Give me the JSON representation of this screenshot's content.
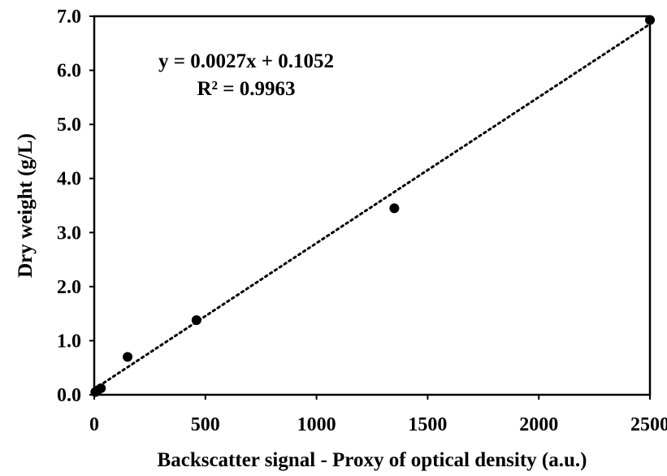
{
  "chart_data": {
    "type": "scatter",
    "xlabel": "Backscatter signal - Proxy of optical density (a.u.)",
    "ylabel": "Dry weight (g/L)",
    "xlim": [
      0,
      2500
    ],
    "ylim": [
      0,
      7
    ],
    "xticks": [
      "0",
      "500",
      "1000",
      "1500",
      "2000",
      "2500"
    ],
    "yticks": [
      "0.0",
      "1.0",
      "2.0",
      "3.0",
      "4.0",
      "5.0",
      "6.0",
      "7.0"
    ],
    "grid": false,
    "legend": "none",
    "series": [
      {
        "marker_color": "#000000",
        "points": [
          {
            "x": 5,
            "y": 0.05
          },
          {
            "x": 15,
            "y": 0.08
          },
          {
            "x": 30,
            "y": 0.12
          },
          {
            "x": 150,
            "y": 0.7
          },
          {
            "x": 460,
            "y": 1.38
          },
          {
            "x": 1350,
            "y": 3.45
          },
          {
            "x": 2500,
            "y": 6.93
          }
        ]
      }
    ],
    "trendline": {
      "style": "dotted",
      "color": "#000000",
      "slope": 0.0027,
      "intercept": 0.1052,
      "x_range": [
        0,
        2500
      ]
    },
    "annotations": [
      "y = 0.0027x + 0.1052",
      "R² = 0.9963"
    ]
  }
}
